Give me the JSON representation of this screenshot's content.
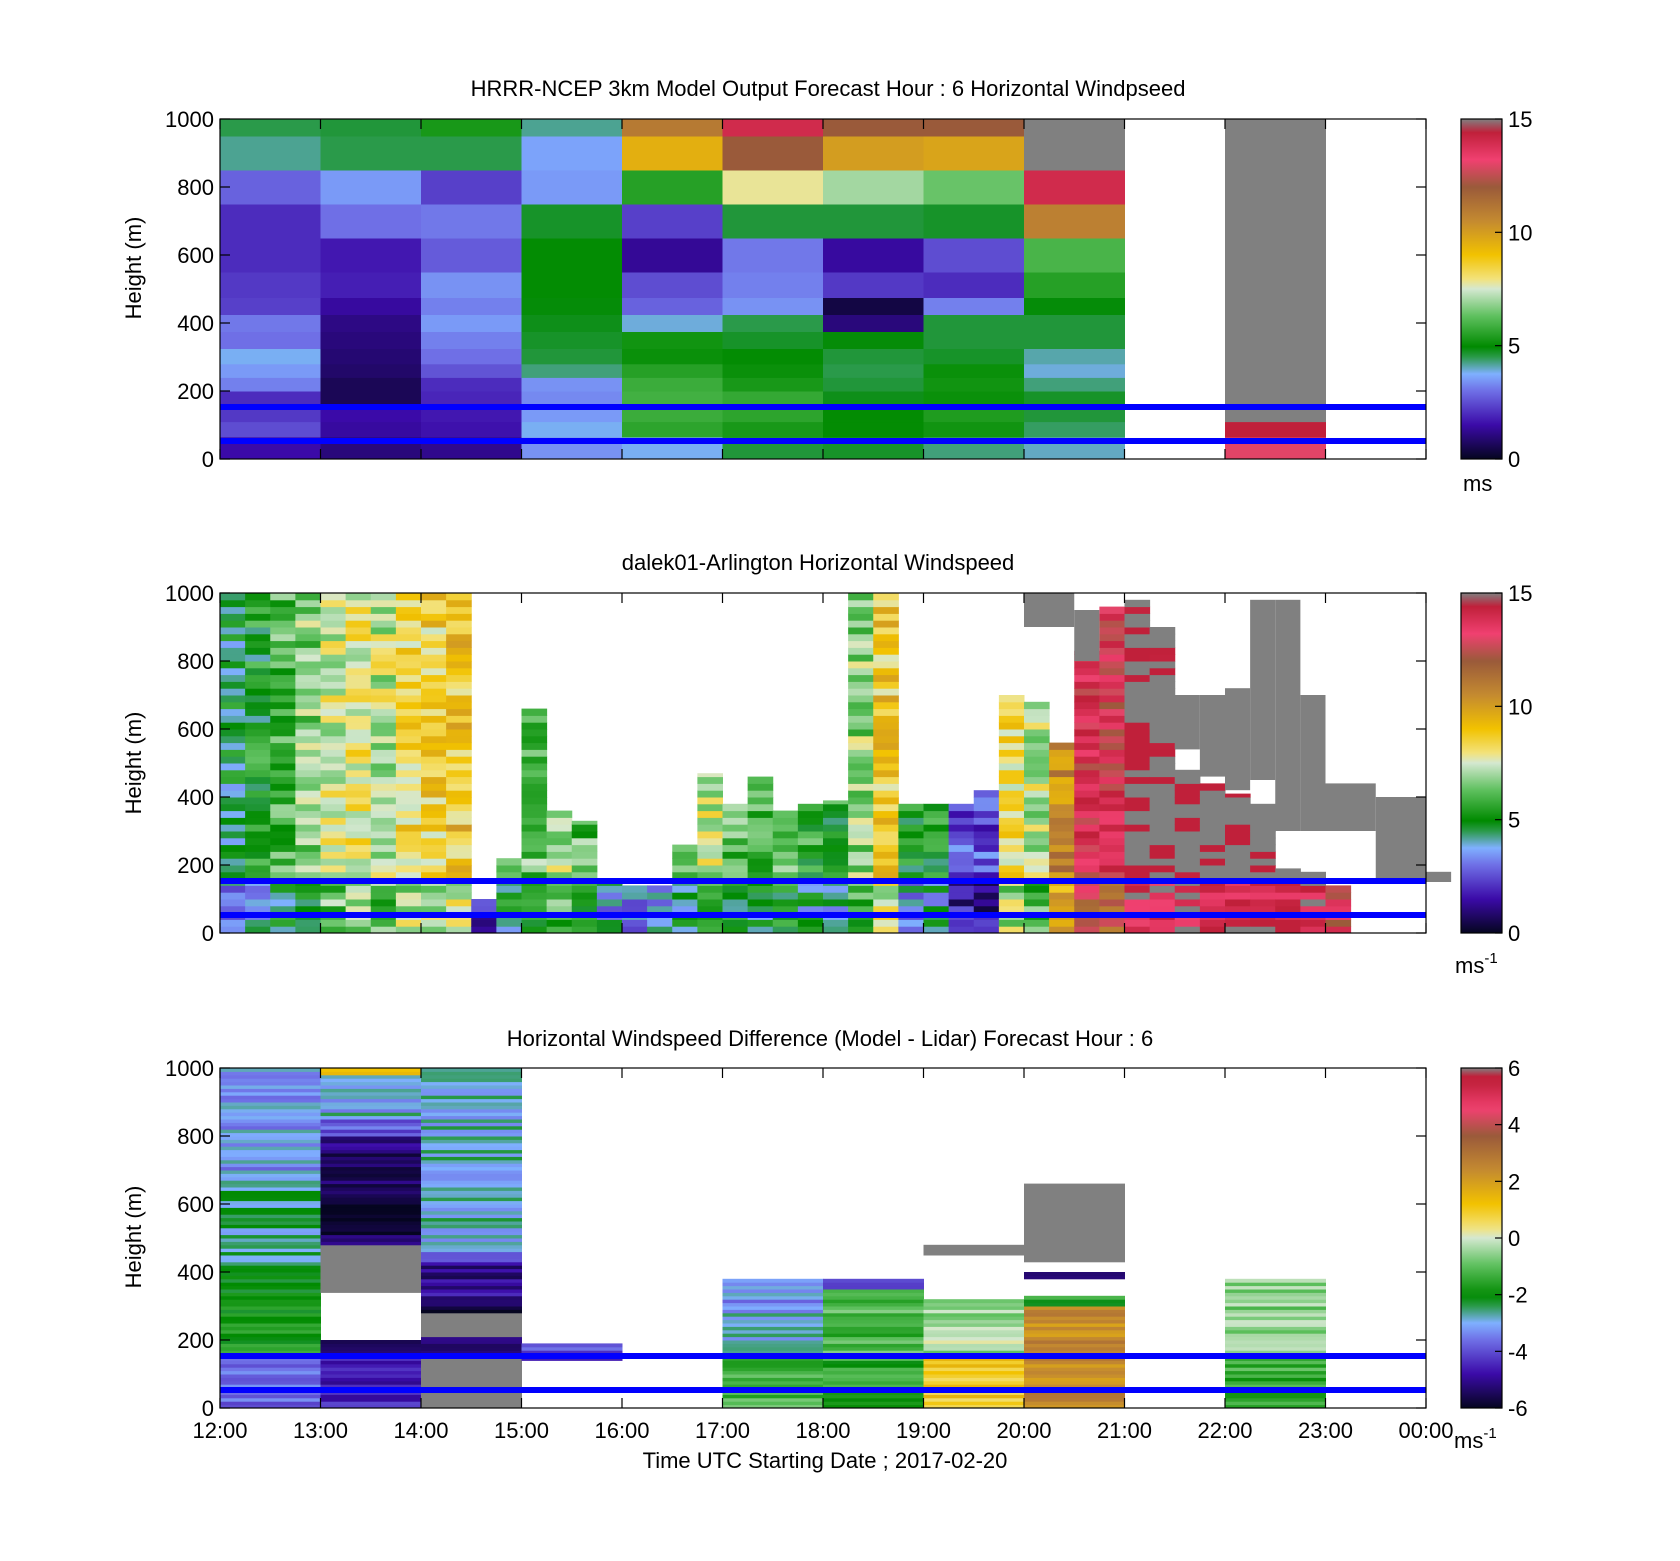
{
  "figure": {
    "xlabel": "Time UTC  Starting Date ; 2017-02-20"
  },
  "chart_data": [
    {
      "type": "heatmap",
      "title": "HRRR-NCEP 3km Model Output   Forecast Hour : 6 Horizontal Windpseed",
      "ylabel": "Height (m)",
      "xlim": [
        "12:00",
        "00:00"
      ],
      "ylim": [
        0,
        1000
      ],
      "yticks": [
        "0",
        "200",
        "400",
        "600",
        "800",
        "1000"
      ],
      "colorbar": {
        "ticks": [
          "0",
          "5",
          "10",
          "15"
        ],
        "unit": "ms",
        "unit_sup": "",
        "range": [
          0,
          15
        ]
      },
      "reference_lines_m": [
        150,
        50
      ],
      "time_bins": [
        "12:00",
        "13:00",
        "14:00",
        "15:00",
        "16:00",
        "17:00",
        "18:00",
        "19:00",
        "20:00",
        "21:00",
        "22:00",
        "23:00"
      ],
      "heights_m": [
        40,
        90,
        130,
        180,
        220,
        260,
        300,
        350,
        400,
        450,
        500,
        600,
        700,
        800,
        900,
        1000
      ],
      "values": [
        [
          1.5,
          2.5,
          2.2,
          2.0,
          3.2,
          3.5,
          3.8,
          3.0,
          3.1,
          2.3,
          2.2,
          2.0,
          2.0,
          2.8,
          4.2,
          4.5
        ],
        [
          1.0,
          1.4,
          1.5,
          0.6,
          0.6,
          0.8,
          0.9,
          1.0,
          1.1,
          1.4,
          1.8,
          1.7,
          3.0,
          3.5,
          4.5,
          4.6
        ],
        [
          1.2,
          1.6,
          1.7,
          1.9,
          2.0,
          2.6,
          3.0,
          3.2,
          3.5,
          3.2,
          3.4,
          2.7,
          3.1,
          2.3,
          4.5,
          5.3
        ],
        [
          3.4,
          3.8,
          3.5,
          3.3,
          3.4,
          4.3,
          4.6,
          4.7,
          4.8,
          4.9,
          5.0,
          5.0,
          4.7,
          3.5,
          3.6,
          4.2
        ],
        [
          3.8,
          5.6,
          5.8,
          5.9,
          5.8,
          5.5,
          5.1,
          5.2,
          3.9,
          2.8,
          2.5,
          1.3,
          2.3,
          5.5,
          9.5,
          11.0
        ],
        [
          4.6,
          5.3,
          5.6,
          5.7,
          5.3,
          5.1,
          5.0,
          4.7,
          4.5,
          3.4,
          3.2,
          3.1,
          4.6,
          7.8,
          12.0,
          14.0
        ],
        [
          4.7,
          5.0,
          5.0,
          4.8,
          4.6,
          4.5,
          4.6,
          4.9,
          1.0,
          0.4,
          2.2,
          1.4,
          4.6,
          7.0,
          10.0,
          12.0
        ],
        [
          4.3,
          5.2,
          5.4,
          5.1,
          5.2,
          5.1,
          4.7,
          4.6,
          4.6,
          3.2,
          2.0,
          2.5,
          4.7,
          6.4,
          9.8,
          12.0
        ],
        [
          4.0,
          4.4,
          4.6,
          4.7,
          4.3,
          3.9,
          4.1,
          4.6,
          4.6,
          4.9,
          5.5,
          6.0,
          10.8,
          14.0,
          16.0,
          16.0
        ],
        [
          null,
          null,
          null,
          null,
          null,
          null,
          null,
          null,
          null,
          null,
          null,
          null,
          null,
          null,
          null,
          null
        ],
        [
          13.0,
          14.5,
          16.0,
          16.0,
          16.0,
          16.0,
          16.0,
          16.0,
          16.0,
          16.0,
          16.0,
          16.0,
          16.0,
          16.0,
          16.0,
          16.0
        ],
        [
          null,
          null,
          null,
          null,
          null,
          null,
          null,
          null,
          null,
          null,
          null,
          null,
          null,
          null,
          null,
          null
        ]
      ]
    },
    {
      "type": "heatmap",
      "title": "dalek01-Arlington  Horizontal Windspeed",
      "ylabel": "Height (m)",
      "xlim": [
        "12:00",
        "00:00"
      ],
      "ylim": [
        0,
        1000
      ],
      "yticks": [
        "0",
        "200",
        "400",
        "600",
        "800",
        "1000"
      ],
      "colorbar": {
        "ticks": [
          "0",
          "5",
          "10",
          "15"
        ],
        "unit": "ms",
        "unit_sup": "-1",
        "range": [
          0,
          15
        ]
      },
      "reference_lines_m": [
        150,
        50
      ],
      "time_step_minutes": 15,
      "profile_note": "top height (m) and representative speed (m/s) for each 15-minute profile",
      "profiles": [
        {
          "top": 1000,
          "speed": 4.6
        },
        {
          "top": 1000,
          "speed": 5.2
        },
        {
          "top": 1000,
          "speed": 6.1
        },
        {
          "top": 1000,
          "speed": 6.6
        },
        {
          "top": 1000,
          "speed": 7.6
        },
        {
          "top": 1000,
          "speed": 7.8
        },
        {
          "top": 1000,
          "speed": 7.4
        },
        {
          "top": 1000,
          "speed": 8.4
        },
        {
          "top": 1000,
          "speed": 8.6
        },
        {
          "top": 1000,
          "speed": 8.9
        },
        {
          "top": 100,
          "speed": 2.8
        },
        {
          "top": 220,
          "speed": 5.9
        },
        {
          "top": 660,
          "speed": 6.3
        },
        {
          "top": 360,
          "speed": 7.2
        },
        {
          "top": 330,
          "speed": 6.2
        },
        {
          "top": 150,
          "speed": 4.8
        },
        {
          "top": 140,
          "speed": 4.5
        },
        {
          "top": 140,
          "speed": 4.9
        },
        {
          "top": 260,
          "speed": 5.9
        },
        {
          "top": 470,
          "speed": 7.4
        },
        {
          "top": 380,
          "speed": 6.1
        },
        {
          "top": 460,
          "speed": 6.0
        },
        {
          "top": 360,
          "speed": 6.4
        },
        {
          "top": 380,
          "speed": 5.6
        },
        {
          "top": 390,
          "speed": 5.4
        },
        {
          "top": 1000,
          "speed": 6.8
        },
        {
          "top": 1000,
          "speed": 8.8
        },
        {
          "top": 380,
          "speed": 4.9
        },
        {
          "top": 380,
          "speed": 5.4
        },
        {
          "top": 380,
          "speed": 2.7
        },
        {
          "top": 420,
          "speed": 2.6
        },
        {
          "top": 700,
          "speed": 8.2
        },
        {
          "top": 680,
          "speed": 7.3
        },
        {
          "top": 560,
          "speed": 10.5
        },
        {
          "top": 830,
          "speed": 13.5
        },
        {
          "top": 960,
          "speed": 13.2
        },
        {
          "top": 980,
          "speed": 15.5
        },
        {
          "top": 900,
          "speed": 15.5
        },
        {
          "top": 480,
          "speed": 15.5
        },
        {
          "top": 440,
          "speed": 15.5
        },
        {
          "top": 410,
          "speed": 15.5
        },
        {
          "top": 380,
          "speed": 15.5
        },
        {
          "top": 190,
          "speed": 15.5
        },
        {
          "top": 180,
          "speed": 15.5
        },
        {
          "top": 140,
          "speed": 14.0
        }
      ],
      "gray_segments_above_15": [
        {
          "t0": 32,
          "t1": 34,
          "y0": 900,
          "y1": 1000
        },
        {
          "t0": 34,
          "t1": 35,
          "y0": 800,
          "y1": 950
        },
        {
          "t0": 37,
          "t1": 38,
          "y0": 600,
          "y1": 700
        },
        {
          "t0": 38,
          "t1": 39,
          "y0": 540,
          "y1": 700
        },
        {
          "t0": 39,
          "t1": 40,
          "y0": 460,
          "y1": 700
        },
        {
          "t0": 40,
          "t1": 41,
          "y0": 420,
          "y1": 720
        },
        {
          "t0": 41,
          "t1": 42,
          "y0": 450,
          "y1": 980
        },
        {
          "t0": 42,
          "t1": 43,
          "y0": 300,
          "y1": 980
        },
        {
          "t0": 43,
          "t1": 44,
          "y0": 300,
          "y1": 700
        },
        {
          "t0": 44,
          "t1": 46,
          "y0": 300,
          "y1": 440
        },
        {
          "t0": 46,
          "t1": 48,
          "y0": 160,
          "y1": 400
        },
        {
          "t0": 48,
          "t1": 49,
          "y0": 150,
          "y1": 180
        }
      ]
    },
    {
      "type": "heatmap",
      "title": "Horizontal Windspeed Difference (Model - Lidar) Forecast Hour : 6",
      "ylabel": "Height (m)",
      "xlim": [
        "12:00",
        "00:00"
      ],
      "ylim": [
        0,
        1000
      ],
      "yticks": [
        "0",
        "200",
        "400",
        "600",
        "800",
        "1000"
      ],
      "xticks": [
        "12:00",
        "13:00",
        "14:00",
        "15:00",
        "16:00",
        "17:00",
        "18:00",
        "19:00",
        "20:00",
        "21:00",
        "22:00",
        "23:00",
        "00:00"
      ],
      "colorbar": {
        "ticks": [
          "-6",
          "-4",
          "-2",
          "0",
          "2",
          "4",
          "6"
        ],
        "unit": "ms",
        "unit_sup": "-1",
        "range": [
          -6,
          6
        ]
      },
      "reference_lines_m": [
        150,
        50
      ],
      "columns": [
        {
          "bin": "12:00",
          "top": 1000,
          "profile": [
            [
              0,
              150,
              -3.8
            ],
            [
              150,
              400,
              -1.8
            ],
            [
              400,
              700,
              -2.6
            ],
            [
              700,
              1000,
              -3.2
            ]
          ]
        },
        {
          "bin": "13:00",
          "top": 1000,
          "profile": [
            [
              0,
              150,
              -4.6
            ],
            [
              150,
              200,
              -5.6
            ],
            [
              200,
              340,
              null
            ],
            [
              340,
              480,
              7.0
            ],
            [
              480,
              600,
              -5.6
            ],
            [
              600,
              800,
              -5.2
            ],
            [
              800,
              850,
              -3.8
            ],
            [
              850,
              980,
              -3.0
            ],
            [
              980,
              1000,
              1.0
            ]
          ]
        },
        {
          "bin": "14:00",
          "top": 1000,
          "profile": [
            [
              0,
              150,
              7.0
            ],
            [
              150,
              210,
              -5.6
            ],
            [
              210,
              280,
              7.0
            ],
            [
              280,
              320,
              -5.8
            ],
            [
              320,
              420,
              -5.0
            ],
            [
              420,
              460,
              -4.2
            ],
            [
              460,
              1000,
              -2.8
            ]
          ]
        },
        {
          "bin": "15:00",
          "top": 190,
          "profile": [
            [
              140,
              190,
              -4.0
            ]
          ]
        },
        {
          "bin": "17:00",
          "top": 380,
          "profile": [
            [
              0,
              150,
              -1.2
            ],
            [
              150,
              280,
              -2.8
            ],
            [
              280,
              380,
              -3.2
            ]
          ]
        },
        {
          "bin": "18:00",
          "top": 380,
          "profile": [
            [
              0,
              150,
              -1.6
            ],
            [
              150,
              350,
              -1.2
            ],
            [
              350,
              380,
              -3.8
            ]
          ]
        },
        {
          "bin": "19:00",
          "top": 320,
          "profile": [
            [
              0,
              150,
              1.0
            ],
            [
              150,
              320,
              -0.4
            ],
            [
              450,
              480,
              7.0
            ]
          ]
        },
        {
          "bin": "20:00",
          "top": 660,
          "profile": [
            [
              0,
              300,
              2.4
            ],
            [
              300,
              330,
              -1.6
            ],
            [
              380,
              400,
              -5.6
            ],
            [
              430,
              660,
              7.0
            ]
          ]
        },
        {
          "bin": "22:00",
          "top": 380,
          "profile": [
            [
              0,
              150,
              -1.4
            ],
            [
              150,
              380,
              -0.6
            ]
          ]
        }
      ]
    }
  ]
}
